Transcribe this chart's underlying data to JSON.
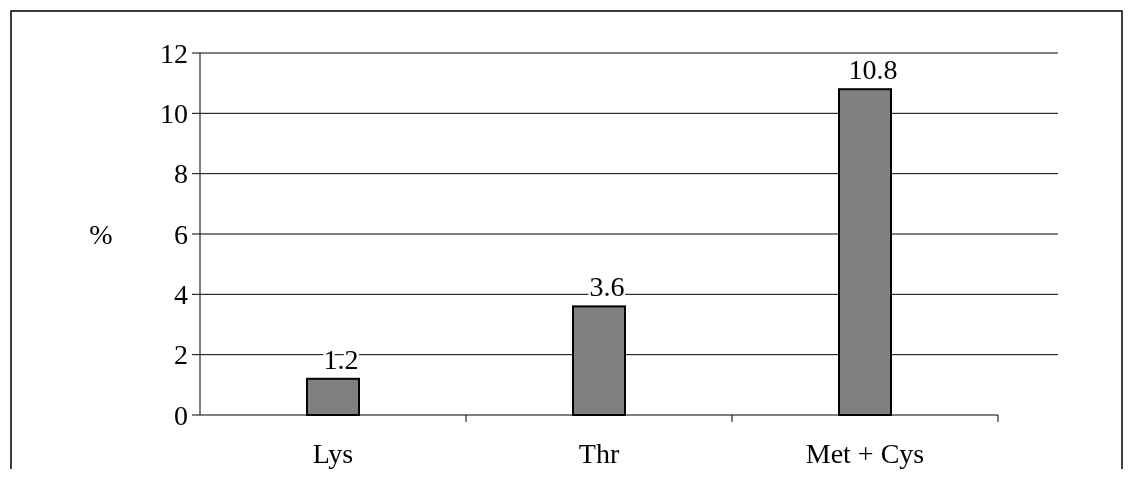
{
  "chart_data": {
    "type": "bar",
    "ylabel": "%",
    "categories": [
      "Lys",
      "Thr",
      "Met + Cys"
    ],
    "values": [
      1.2,
      3.6,
      10.8
    ],
    "color": "#808080",
    "ylim": [
      0,
      12
    ],
    "yticks": [
      0,
      2,
      4,
      6,
      8,
      10,
      12
    ],
    "grid": "y",
    "data_labels": true
  }
}
